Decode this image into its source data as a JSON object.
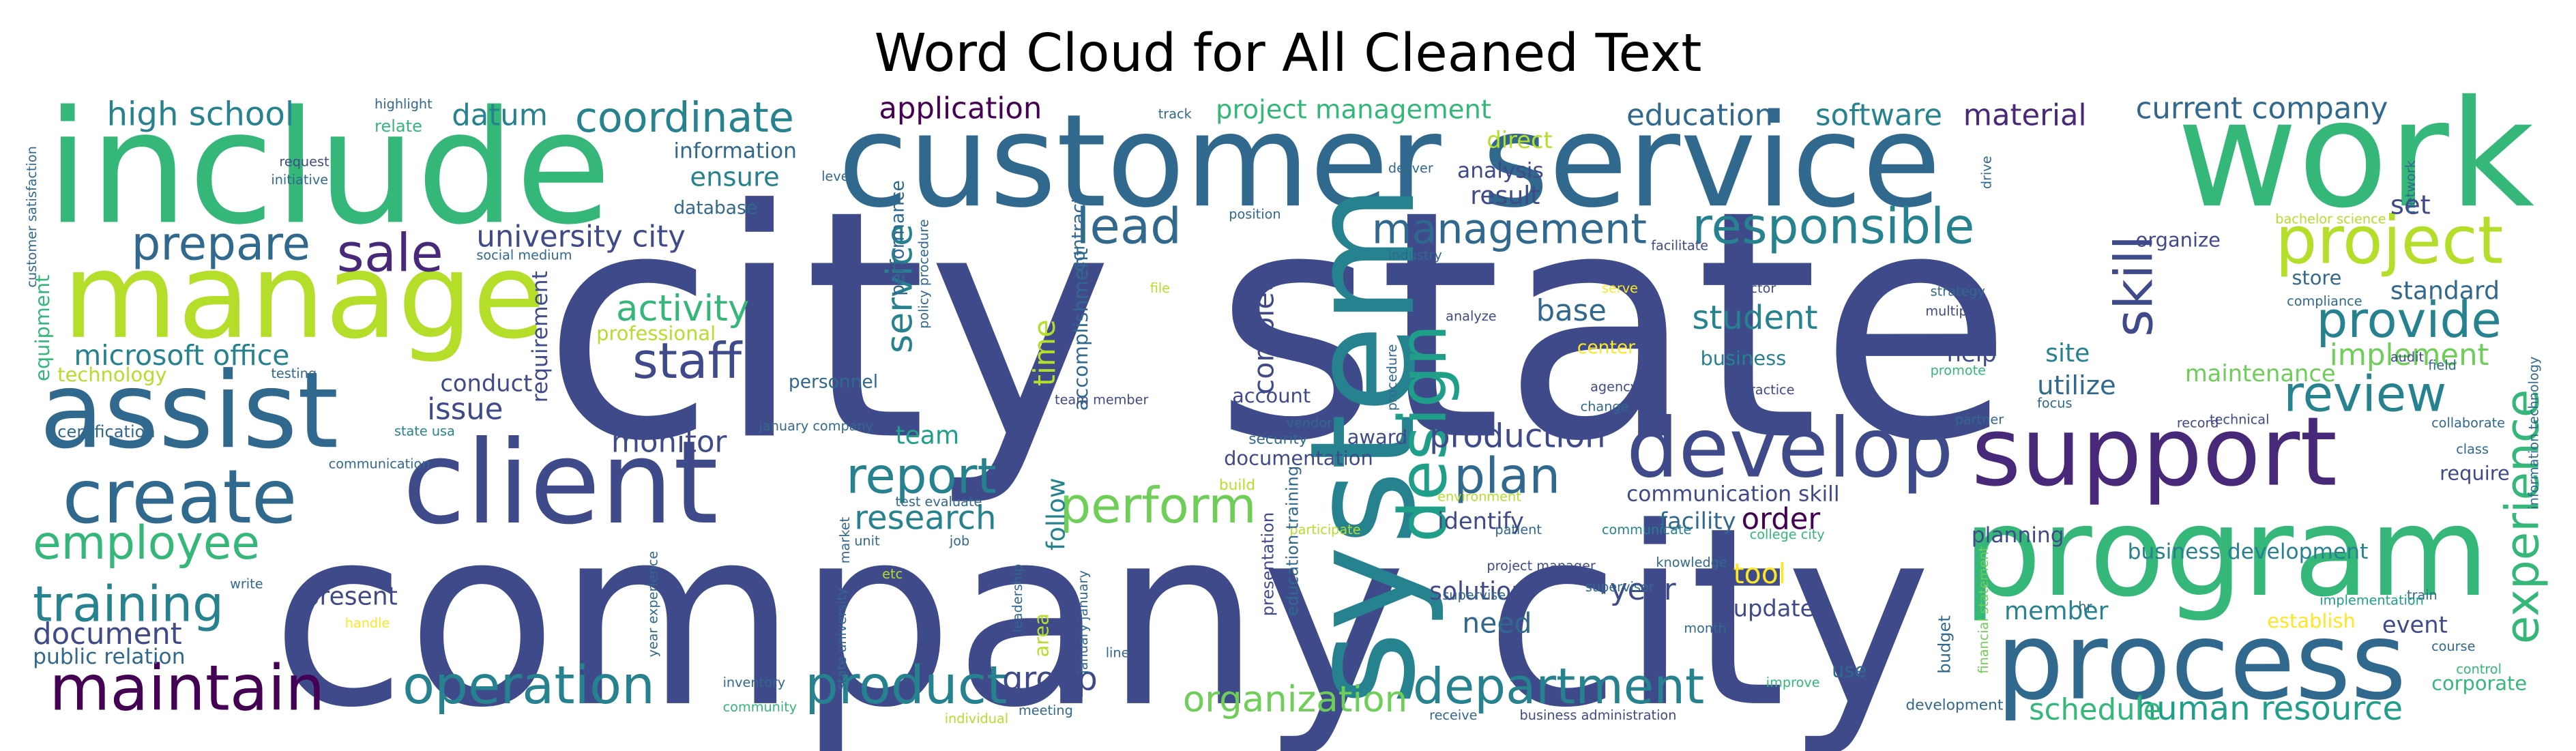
{
  "chart_data": {
    "type": "wordcloud",
    "title": "Word Cloud for All Cleaned Text",
    "words": [
      "city state",
      "company city",
      "customer service",
      "include",
      "work",
      "manage",
      "assist",
      "client",
      "create",
      "system",
      "develop",
      "support",
      "program",
      "process",
      "project",
      "experience",
      "maintain",
      "training",
      "employee",
      "document",
      "public relation",
      "operation",
      "product",
      "department",
      "organization",
      "group",
      "human resource",
      "schedule",
      "report",
      "research",
      "perform",
      "design",
      "plan",
      "production",
      "review",
      "provide",
      "implement",
      "skill",
      "responsible",
      "management",
      "lead",
      "sale",
      "prepare",
      "staff",
      "activity",
      "university city",
      "coordinate",
      "datum",
      "high school",
      "application",
      "project management",
      "education",
      "software",
      "material",
      "current company",
      "microsoft office",
      "monitor",
      "issue",
      "conduct",
      "ensure",
      "information",
      "database",
      "result",
      "analysis",
      "student",
      "base",
      "business",
      "help",
      "site",
      "utilize",
      "maintenance",
      "standard",
      "store",
      "set",
      "organize",
      "communication skill",
      "facility",
      "order",
      "identify",
      "solution",
      "need",
      "year",
      "update",
      "tool",
      "member",
      "event",
      "business development",
      "planning",
      "require",
      "corporate",
      "establish",
      "present",
      "team",
      "account",
      "documentation",
      "award",
      "security",
      "service",
      "time",
      "follow",
      "complete",
      "accomplishment",
      "requirement",
      "equipment",
      "technology",
      "certification",
      "personnel",
      "professional",
      "direct",
      "center",
      "use",
      "budget",
      "area",
      "customer satisfaction",
      "highlight",
      "relate",
      "request",
      "initiative",
      "level",
      "track",
      "deliver",
      "position",
      "contract",
      "performance",
      "policy procedure",
      "file",
      "industry",
      "facilitate",
      "serve",
      "director",
      "analyze",
      "agency",
      "change",
      "practice",
      "promote",
      "strategy",
      "multiple",
      "compliance",
      "audit",
      "field",
      "bachelor science",
      "network",
      "drive",
      "focus",
      "technical",
      "record",
      "collaborate",
      "class",
      "information technology",
      "train",
      "implementation",
      "course",
      "control",
      "hr",
      "partner",
      "financial statement",
      "college city",
      "improve",
      "development",
      "business administration",
      "receive",
      "supervisor",
      "knowledge",
      "project manager",
      "supervise",
      "patient",
      "communicate",
      "participate",
      "environment",
      "vendor",
      "build",
      "month",
      "etc",
      "job",
      "unit",
      "market",
      "test evaluate",
      "january company",
      "january january",
      "line",
      "leadership",
      "meeting",
      "individual",
      "inventory",
      "community",
      "year experience",
      "state university",
      "handle",
      "write",
      "state usa",
      "communication",
      "testing",
      "social medium",
      "procedure",
      "presentation",
      "education training",
      "team member"
    ]
  }
}
